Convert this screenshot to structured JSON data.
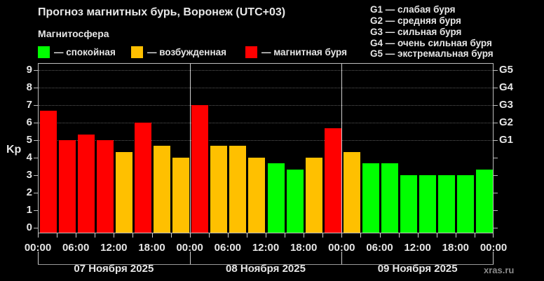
{
  "title": "Прогноз магнитных бурь, Воронеж (UTC+03)",
  "subtitle": "Магнитосфера",
  "legend": [
    {
      "label": "— спокойная",
      "color": "#00ff00"
    },
    {
      "label": "— возбужденная",
      "color": "#ffc000"
    },
    {
      "label": "— магнитная буря",
      "color": "#ff0000"
    }
  ],
  "g_legend": [
    "G1 — слабая буря",
    "G2 — средняя буря",
    "G3 — сильная буря",
    "G4 — очень сильная буря",
    "G5 — экстремальная буря"
  ],
  "y_axis_label": "Kp",
  "watermark": "xras.ru",
  "chart_data": {
    "type": "bar",
    "title": "Прогноз магнитных бурь, Воронеж (UTC+03)",
    "xlabel": "",
    "ylabel": "Kp",
    "ylim": [
      0,
      9
    ],
    "yticks": [
      0,
      1,
      2,
      3,
      4,
      5,
      6,
      7,
      8,
      9
    ],
    "right_axis_ticks": [
      {
        "kp": 5,
        "label": "G1"
      },
      {
        "kp": 6,
        "label": "G2"
      },
      {
        "kp": 7,
        "label": "G3"
      },
      {
        "kp": 8,
        "label": "G4"
      },
      {
        "kp": 9,
        "label": "G5"
      }
    ],
    "grid": "dotted horizontal at Kp 5-9",
    "x_tick_labels": [
      "00:00",
      "06:00",
      "12:00",
      "18:00",
      "00:00",
      "06:00",
      "12:00",
      "18:00",
      "00:00",
      "06:00",
      "12:00",
      "18:00",
      "00:00"
    ],
    "days": [
      "07 Ноября 2025",
      "08 Ноября 2025",
      "09 Ноября 2025"
    ],
    "categories": [
      "07.11 00-03",
      "07.11 03-06",
      "07.11 06-09",
      "07.11 09-12",
      "07.11 12-15",
      "07.11 15-18",
      "07.11 18-21",
      "07.11 21-24",
      "08.11 00-03",
      "08.11 03-06",
      "08.11 06-09",
      "08.11 09-12",
      "08.11 12-15",
      "08.11 15-18",
      "08.11 18-21",
      "08.11 21-24",
      "09.11 00-03",
      "09.11 03-06",
      "09.11 06-09",
      "09.11 09-12",
      "09.11 12-15",
      "09.11 15-18",
      "09.11 18-21",
      "09.11 21-24"
    ],
    "values": [
      6.67,
      5.0,
      5.33,
      5.0,
      4.33,
      6.0,
      4.67,
      4.0,
      7.0,
      4.67,
      4.67,
      4.0,
      3.67,
      3.33,
      4.0,
      5.67,
      4.33,
      3.67,
      3.67,
      3.0,
      3.0,
      3.0,
      3.0,
      3.33
    ],
    "status": [
      "storm",
      "storm",
      "storm",
      "storm",
      "active",
      "storm",
      "active",
      "active",
      "storm",
      "active",
      "active",
      "active",
      "quiet",
      "quiet",
      "active",
      "storm",
      "active",
      "quiet",
      "quiet",
      "quiet",
      "quiet",
      "quiet",
      "quiet",
      "quiet"
    ],
    "colors": {
      "quiet": "#00ff00",
      "active": "#ffc000",
      "storm": "#ff0000"
    }
  }
}
